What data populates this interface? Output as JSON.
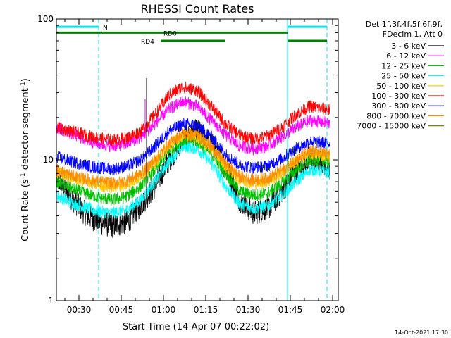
{
  "chart_data": {
    "type": "line",
    "title": "RHESSI Count Rates",
    "xlabel": "Start Time (14-Apr-07 00:22:02)",
    "ylabel_html": "Count Rate (s",
    "ylabel_sup1": "-1",
    "ylabel_mid": " detector segment",
    "ylabel_sup2": "-1",
    "ylabel_end": ")",
    "y_scale": "log",
    "ylim": [
      1,
      100
    ],
    "xlim_minutes": [
      0,
      100
    ],
    "y_ticks": [
      {
        "value": 1,
        "label": "1"
      },
      {
        "value": 10,
        "label": "10"
      },
      {
        "value": 100,
        "label": "100"
      }
    ],
    "x_ticks": [
      {
        "minute": 8,
        "label": "00:30"
      },
      {
        "minute": 23,
        "label": "00:45"
      },
      {
        "minute": 38,
        "label": "01:00"
      },
      {
        "minute": 53,
        "label": "01:15"
      },
      {
        "minute": 68,
        "label": "01:30"
      },
      {
        "minute": 83,
        "label": "01:45"
      },
      {
        "minute": 98,
        "label": "02:00"
      }
    ],
    "legend_header": [
      "Det 1f,3f,4f,5f,6f,9f,",
      "FDecim 1, Att 0"
    ],
    "legend_placement": "right",
    "series": [
      {
        "name": "3 - 6 keV",
        "color": "#000000",
        "x": [
          0,
          5,
          10,
          15,
          20,
          25,
          30,
          35,
          40,
          45,
          50,
          55,
          60,
          65,
          70,
          75,
          80,
          85,
          90,
          95,
          97
        ],
        "y": [
          7.5,
          5.5,
          4.2,
          3.6,
          3.4,
          3.6,
          4.8,
          6.5,
          10,
          14,
          16,
          13,
          9,
          5.2,
          4.2,
          4.5,
          6,
          8.5,
          10,
          9.5,
          9
        ]
      },
      {
        "name": "6 - 12 keV",
        "color": "#ff00ff",
        "x": [
          0,
          5,
          10,
          15,
          20,
          25,
          30,
          35,
          40,
          45,
          50,
          55,
          60,
          65,
          70,
          75,
          80,
          85,
          90,
          95,
          97
        ],
        "y": [
          17,
          15.5,
          14,
          13,
          12.5,
          13,
          14.5,
          18,
          23,
          26,
          24,
          19,
          15,
          12.5,
          12,
          12.5,
          14.5,
          17,
          19,
          18.5,
          18
        ]
      },
      {
        "name": "12 - 25 keV",
        "color": "#00c000",
        "x": [
          0,
          5,
          10,
          15,
          20,
          25,
          30,
          35,
          40,
          45,
          50,
          55,
          60,
          65,
          70,
          75,
          80,
          85,
          90,
          95,
          97
        ],
        "y": [
          7,
          6.3,
          5.8,
          5.4,
          5.2,
          5.5,
          6.5,
          8.5,
          11.5,
          14,
          13.5,
          11,
          8,
          6,
          5.6,
          5.8,
          6.8,
          8.5,
          10,
          9.8,
          9.6
        ]
      },
      {
        "name": "25 - 50 keV",
        "color": "#00ffff",
        "x": [
          0,
          5,
          10,
          15,
          20,
          25,
          30,
          35,
          40,
          45,
          50,
          55,
          60,
          65,
          70,
          75,
          80,
          85,
          90,
          95,
          97
        ],
        "y": [
          5.6,
          5,
          4.6,
          4.3,
          4.2,
          4.4,
          5.2,
          7,
          9.8,
          12.5,
          12,
          9.5,
          6.5,
          4.9,
          4.5,
          4.7,
          5.6,
          7,
          8.5,
          8.3,
          8
        ]
      },
      {
        "name": "50 - 100 keV",
        "color": "#ffc800",
        "x": [
          0,
          5,
          10,
          15,
          20,
          25,
          30,
          35,
          40,
          45,
          50,
          55,
          60,
          65,
          70,
          75,
          80,
          85,
          90,
          95,
          97
        ],
        "y": [
          8.2,
          7.5,
          7,
          6.6,
          6.4,
          6.7,
          7.6,
          9.6,
          12.5,
          15,
          14.5,
          12,
          9,
          7.2,
          6.8,
          7,
          8,
          9.8,
          11,
          10.8,
          10.5
        ]
      },
      {
        "name": "100 - 300 keV",
        "color": "#ff0000",
        "x": [
          0,
          5,
          10,
          15,
          20,
          25,
          30,
          35,
          40,
          45,
          50,
          55,
          60,
          65,
          70,
          75,
          80,
          85,
          90,
          95,
          97
        ],
        "y": [
          17,
          16,
          15,
          14.2,
          13.8,
          14.3,
          16,
          21,
          29,
          33,
          31,
          24,
          18,
          15,
          14,
          14.8,
          17,
          21,
          24,
          23,
          22.5
        ]
      },
      {
        "name": "300 - 800 keV",
        "color": "#0000ff",
        "x": [
          0,
          5,
          10,
          15,
          20,
          25,
          30,
          35,
          40,
          45,
          50,
          55,
          60,
          65,
          70,
          75,
          80,
          85,
          90,
          95,
          97
        ],
        "y": [
          10.5,
          9.8,
          9.2,
          8.8,
          8.6,
          9,
          10,
          12.5,
          16,
          18,
          17.5,
          14.5,
          11,
          9.2,
          8.8,
          9.1,
          10.2,
          12,
          13.5,
          13.2,
          13
        ]
      },
      {
        "name": "800 - 7000 keV",
        "color": "#ff8c00",
        "x": [
          0,
          5,
          10,
          15,
          20,
          25,
          30,
          35,
          40,
          45,
          50,
          55,
          60,
          65,
          70,
          75,
          80,
          85,
          90,
          95,
          97
        ],
        "y": [
          8.5,
          7.8,
          7.3,
          7,
          6.8,
          7.1,
          8,
          10,
          13,
          15.5,
          15,
          12.5,
          9.5,
          7.6,
          7.2,
          7.4,
          8.4,
          10,
          11.5,
          11.2,
          11
        ]
      },
      {
        "name": "7000 - 15000 keV",
        "color": "#7f7f00",
        "x": [],
        "y": []
      }
    ],
    "spike": {
      "series": "6 - 12 keV",
      "minute": 31.5,
      "value": 27
    },
    "spike_black": {
      "series": "3 - 6 keV",
      "minute": 32,
      "value": 38
    },
    "attenuator_bars": [
      {
        "label": "N",
        "color": "#00e5ee",
        "from": 0,
        "to": 15,
        "level": 88,
        "label_at": 16.5
      },
      {
        "label": "",
        "color": "#00e5ee",
        "from": 82,
        "to": 96,
        "level": 88,
        "label_at": null
      },
      {
        "label": "RD0",
        "color": "#008000",
        "from": 0,
        "to": 60,
        "level": 80,
        "label_at": 38
      },
      {
        "label": "",
        "color": "#008000",
        "from": 60,
        "to": 82,
        "level": 80,
        "label_at": null
      },
      {
        "label": "RD4",
        "color": "#008000",
        "from": 37,
        "to": 60,
        "level": 70,
        "label_at": 30
      },
      {
        "label": "",
        "color": "#008000",
        "from": 82,
        "to": 96,
        "level": 70,
        "label_at": null
      }
    ],
    "vertical_lines": [
      {
        "minute": 0,
        "style": "solid",
        "color": "#00e5ee"
      },
      {
        "minute": 15,
        "style": "dashed",
        "color": "#00e5ee"
      },
      {
        "minute": 82,
        "style": "solid",
        "color": "#00e5ee"
      },
      {
        "minute": 96,
        "style": "dashed",
        "color": "#00e5ee"
      }
    ]
  },
  "footer_timestamp": "14-Oct-2021 17:30"
}
